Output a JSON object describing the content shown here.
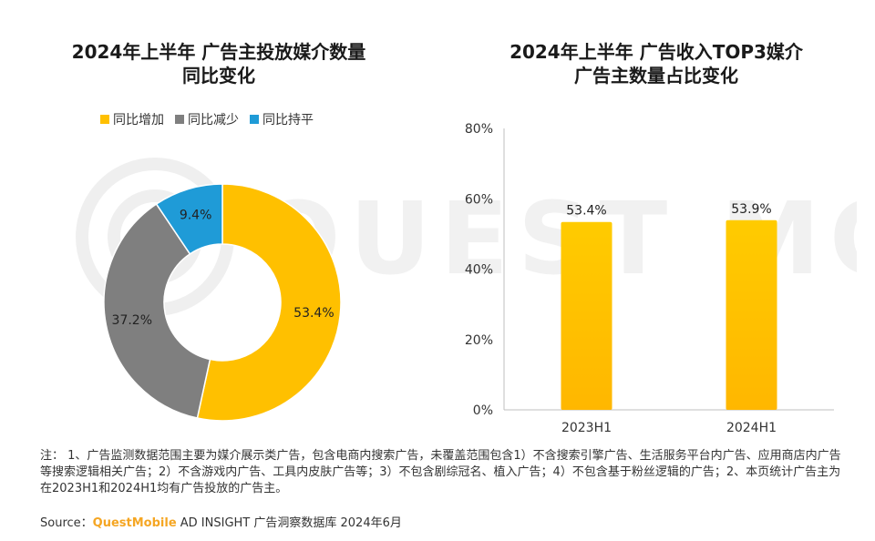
{
  "left_panel": {
    "title_line1": "2024年上半年 广告主投放媒介数量",
    "title_line2": "同比变化",
    "legend": [
      {
        "label": "同比增加",
        "color": "#FFC000"
      },
      {
        "label": "同比减少",
        "color": "#7F7F7F"
      },
      {
        "label": "同比持平",
        "color": "#1F9BD7"
      }
    ]
  },
  "right_panel": {
    "title_line1": "2024年上半年 广告收入TOP3媒介",
    "title_line2": "广告主数量占比变化"
  },
  "watermark": "QUEST MOBILE",
  "notes": "注：  1、广告监测数据范围主要为媒介展示类广告，包含电商内搜索广告，未覆盖范围包含1）不含搜索引擎广告、生活服务平台内广告、应用商店内广告等搜索逻辑相关广告；2）不含游戏内广告、工具内皮肤广告等；3）不包含剧综冠名、植入广告；4）不包含基于粉丝逻辑的广告；2、本页统计广告主为在2023H1和2024H1均有广告投放的广告主。",
  "source": {
    "prefix": "Source：",
    "brand": "QuestMobile",
    "suffix": " AD INSIGHT 广告洞察数据库 2024年6月"
  },
  "chart_data": [
    {
      "type": "pie",
      "donut": true,
      "title": "2024年上半年 广告主投放媒介数量 同比变化",
      "categories": [
        "同比增加",
        "同比减少",
        "同比持平"
      ],
      "values": [
        53.4,
        37.2,
        9.4
      ],
      "value_labels": [
        "53.4%",
        "37.2%",
        "9.4%"
      ],
      "colors": [
        "#FFC000",
        "#7F7F7F",
        "#1F9BD7"
      ],
      "legend": "top"
    },
    {
      "type": "bar",
      "title": "2024年上半年 广告收入TOP3媒介 广告主数量占比变化",
      "categories": [
        "2023H1",
        "2024H1"
      ],
      "values": [
        53.4,
        53.9
      ],
      "value_labels": [
        "53.4%",
        "53.9%"
      ],
      "ylim": [
        0,
        80
      ],
      "yticks": [
        "0%",
        "20%",
        "40%",
        "60%",
        "80%"
      ],
      "ytick_values": [
        0,
        20,
        40,
        60,
        80
      ],
      "color": "#FFC000",
      "grid": false
    }
  ]
}
